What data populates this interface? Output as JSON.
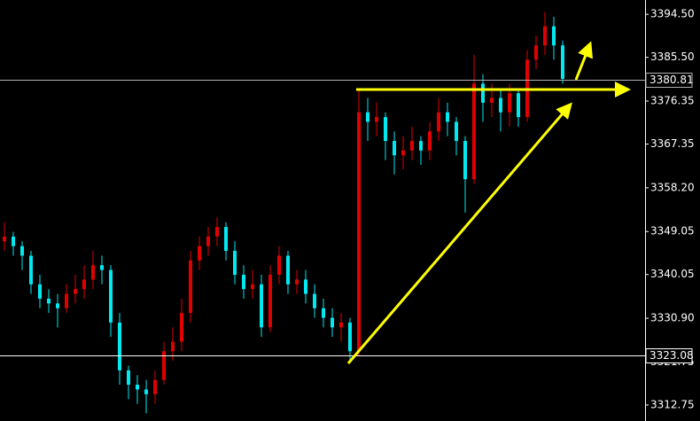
{
  "chart_data": {
    "type": "candlestick",
    "up_color": "#e00000",
    "down_color": "#00e8f0",
    "ylim": [
      3309.4,
      3397.5
    ],
    "yticks": [
      {
        "value": 3394.5,
        "label": "3394.50"
      },
      {
        "value": 3385.5,
        "label": "3385.50"
      },
      {
        "value": 3376.35,
        "label": "3376.35"
      },
      {
        "value": 3367.35,
        "label": "3367.35"
      },
      {
        "value": 3358.2,
        "label": "3358.20"
      },
      {
        "value": 3349.05,
        "label": "3349.05"
      },
      {
        "value": 3340.05,
        "label": "3340.05"
      },
      {
        "value": 3330.9,
        "label": "3330.90"
      },
      {
        "value": 3321.75,
        "label": "3321.75"
      },
      {
        "value": 3312.75,
        "label": "3312.75"
      }
    ],
    "hlines": [
      {
        "value": 3380.81,
        "color": "#b0b0b0"
      },
      {
        "value": 3323.08,
        "color": "#ffffff"
      }
    ],
    "open": [
      3347,
      3348,
      3346,
      3344,
      3338,
      3335,
      3334,
      3333,
      3336,
      3337,
      3339,
      3342,
      3341,
      3330,
      3320,
      3317,
      3316,
      3315,
      3318,
      3324,
      3326,
      3332,
      3343,
      3346,
      3348,
      3350,
      3345,
      3340,
      3337,
      3338,
      3329,
      3340,
      3344,
      3338,
      3339,
      3336,
      3333,
      3331,
      3329,
      3330,
      3324,
      3374,
      3372,
      3373,
      3368,
      3365,
      3366,
      3368,
      3366,
      3370,
      3374,
      3372,
      3368,
      3360,
      3380,
      3376,
      3377,
      3374,
      3378,
      3373,
      3385,
      3388,
      3392,
      3388
    ],
    "high": [
      3351,
      3349,
      3347,
      3345,
      3340,
      3337,
      3336,
      3338,
      3340,
      3342,
      3345,
      3344,
      3342,
      3332,
      3321,
      3319,
      3318,
      3320,
      3326,
      3329,
      3335,
      3345,
      3348,
      3350,
      3352,
      3351,
      3347,
      3342,
      3341,
      3340,
      3342,
      3346,
      3345,
      3341,
      3341,
      3338,
      3335,
      3333,
      3332,
      3331,
      3379,
      3377,
      3376,
      3374,
      3370,
      3369,
      3371,
      3369,
      3372,
      3377,
      3376,
      3373,
      3369,
      3386,
      3382,
      3380,
      3379,
      3380,
      3379,
      3387,
      3390,
      3395,
      3394,
      3389
    ],
    "low": [
      3345,
      3344,
      3341,
      3336,
      3333,
      3332,
      3329,
      3332,
      3334,
      3335,
      3337,
      3338,
      3327,
      3317,
      3314,
      3313,
      3311,
      3313,
      3317,
      3322,
      3324,
      3330,
      3341,
      3344,
      3346,
      3343,
      3338,
      3335,
      3335,
      3327,
      3328,
      3338,
      3336,
      3336,
      3334,
      3331,
      3329,
      3327,
      3326,
      3322,
      3323,
      3368,
      3369,
      3364,
      3361,
      3362,
      3364,
      3363,
      3364,
      3368,
      3369,
      3365,
      3353,
      3359,
      3372,
      3373,
      3370,
      3371,
      3371,
      3372,
      3383,
      3386,
      3385,
      3380
    ],
    "close": [
      3348,
      3346,
      3344,
      3338,
      3335,
      3334,
      3333,
      3336,
      3337,
      3339,
      3342,
      3341,
      3330,
      3320,
      3317,
      3316,
      3315,
      3318,
      3324,
      3326,
      3332,
      3343,
      3346,
      3348,
      3350,
      3345,
      3340,
      3337,
      3338,
      3329,
      3340,
      3344,
      3338,
      3339,
      3336,
      3333,
      3331,
      3329,
      3330,
      3324,
      3374,
      3372,
      3373,
      3368,
      3365,
      3366,
      3368,
      3366,
      3370,
      3374,
      3372,
      3368,
      3360,
      3380,
      3376,
      3377,
      3374,
      3378,
      3373,
      3385,
      3388,
      3392,
      3388,
      3381
    ]
  }
}
